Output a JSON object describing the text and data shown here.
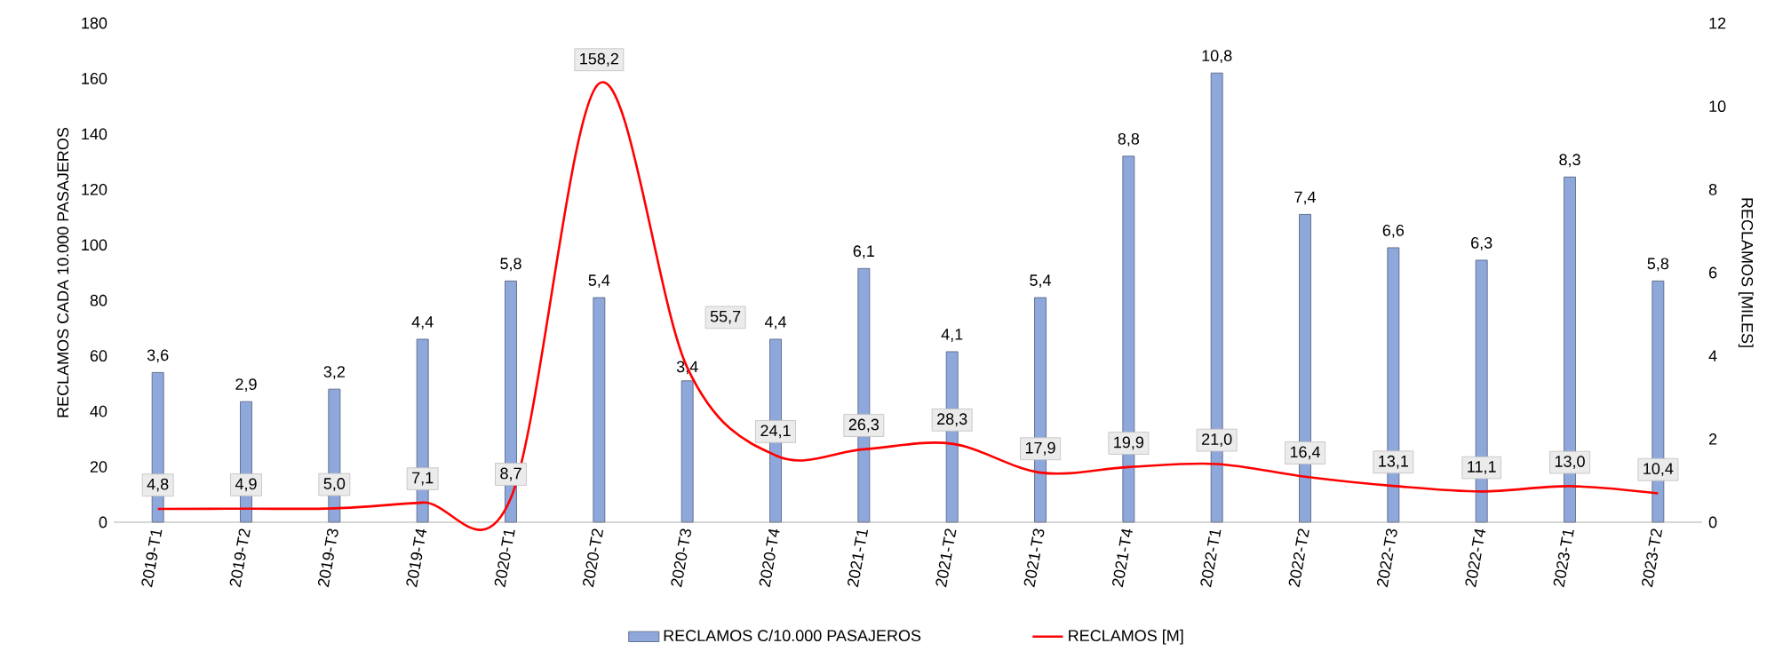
{
  "chart_data": {
    "type": "bar",
    "categories": [
      "2019-T1",
      "2019-T2",
      "2019-T3",
      "2019-T4",
      "2020-T1",
      "2020-T2",
      "2020-T3",
      "2020-T4",
      "2021-T1",
      "2021-T2",
      "2021-T3",
      "2021-T4",
      "2022-T1",
      "2022-T2",
      "2022-T3",
      "2022-T4",
      "2023-T1",
      "2023-T2"
    ],
    "ylabel": "RECLAMOS CADA 10.000 PASAJEROS",
    "y2label": "RECLAMOS [MILES]",
    "ylim": [
      0,
      180
    ],
    "yticks": [
      0,
      20,
      40,
      60,
      80,
      100,
      120,
      140,
      160,
      180
    ],
    "y2lim": [
      0,
      12
    ],
    "y2ticks": [
      0,
      2,
      4,
      6,
      8,
      10,
      12
    ],
    "legend": "bottom",
    "series": [
      {
        "name": "RECLAMOS C/10.000 PASAJEROS",
        "axis": "y2",
        "color": "#8fa8dc",
        "values": [
          3.6,
          2.9,
          3.2,
          4.4,
          5.8,
          5.4,
          3.4,
          4.4,
          6.1,
          4.1,
          5.4,
          8.8,
          10.8,
          7.4,
          6.6,
          6.3,
          8.3,
          5.8
        ],
        "value_labels": [
          "3,6",
          "2,9",
          "3,2",
          "4,4",
          "5,8",
          "5,4",
          "3,4",
          "4,4",
          "6,1",
          "4,1",
          "5,4",
          "8,8",
          "10,8",
          "7,4",
          "6,6",
          "6,3",
          "8,3",
          "5,8"
        ]
      },
      {
        "name": "RECLAMOS [M]",
        "type": "line",
        "axis": "y",
        "color": "#ff0000",
        "values": [
          4.8,
          4.9,
          5.0,
          7.1,
          8.7,
          158.2,
          55.7,
          24.1,
          26.3,
          28.3,
          17.9,
          19.9,
          21.0,
          16.4,
          13.1,
          11.1,
          13.0,
          10.4
        ],
        "value_labels": [
          "4,8",
          "4,9",
          "5,0",
          "7,1",
          "8,7",
          "158,2",
          "55,7",
          "24,1",
          "26,3",
          "28,3",
          "17,9",
          "19,9",
          "21,0",
          "16,4",
          "13,1",
          "11,1",
          "13,0",
          "10,4"
        ]
      }
    ]
  }
}
